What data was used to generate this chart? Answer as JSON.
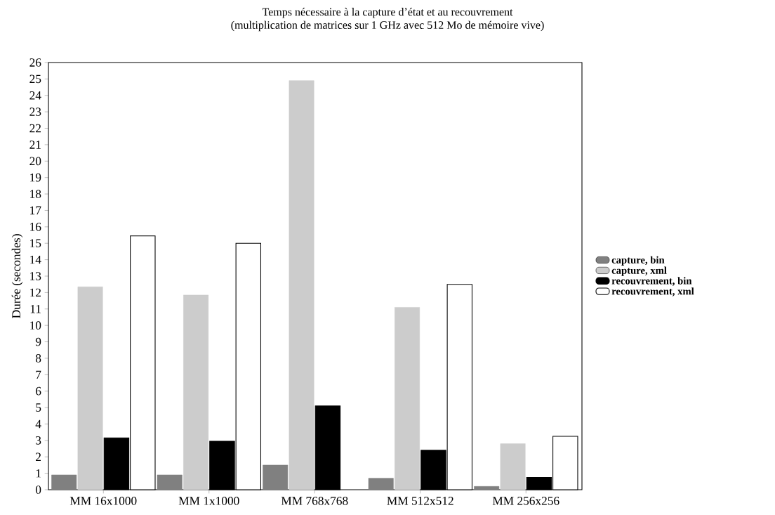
{
  "chart_data": {
    "type": "bar",
    "title": "Temps nécessaire à la capture d’état et au recouvrement",
    "subtitle": "(multiplication de matrices sur 1 GHz avec 512 Mo de mémoire vive)",
    "ylabel": "Durée (secondes)",
    "categories": [
      "MM 16x1000",
      "MM 1x1000",
      "MM 768x768",
      "MM 512x512",
      "MM 256x256"
    ],
    "series": [
      {
        "name": "capture, bin",
        "color": "#808080",
        "values": [
          0.9,
          0.9,
          1.5,
          0.7,
          0.2
        ]
      },
      {
        "name": "capture, xml",
        "color": "#cccccc",
        "values": [
          12.35,
          11.85,
          24.9,
          11.1,
          2.8
        ]
      },
      {
        "name": "recouvrement, bin",
        "color": "#000000",
        "values": [
          3.15,
          2.95,
          5.1,
          2.4,
          0.75
        ]
      },
      {
        "name": "recouvrement, xml",
        "color": "#ffffff",
        "values": [
          15.45,
          15.0,
          null,
          12.5,
          3.25
        ]
      }
    ],
    "ylim": [
      0,
      26
    ],
    "yticks": [
      0,
      1,
      2,
      3,
      4,
      5,
      6,
      7,
      8,
      9,
      10,
      11,
      12,
      13,
      14,
      15,
      16,
      17,
      18,
      19,
      20,
      21,
      22,
      23,
      24,
      25,
      26
    ],
    "grid": false,
    "legend": "right"
  }
}
